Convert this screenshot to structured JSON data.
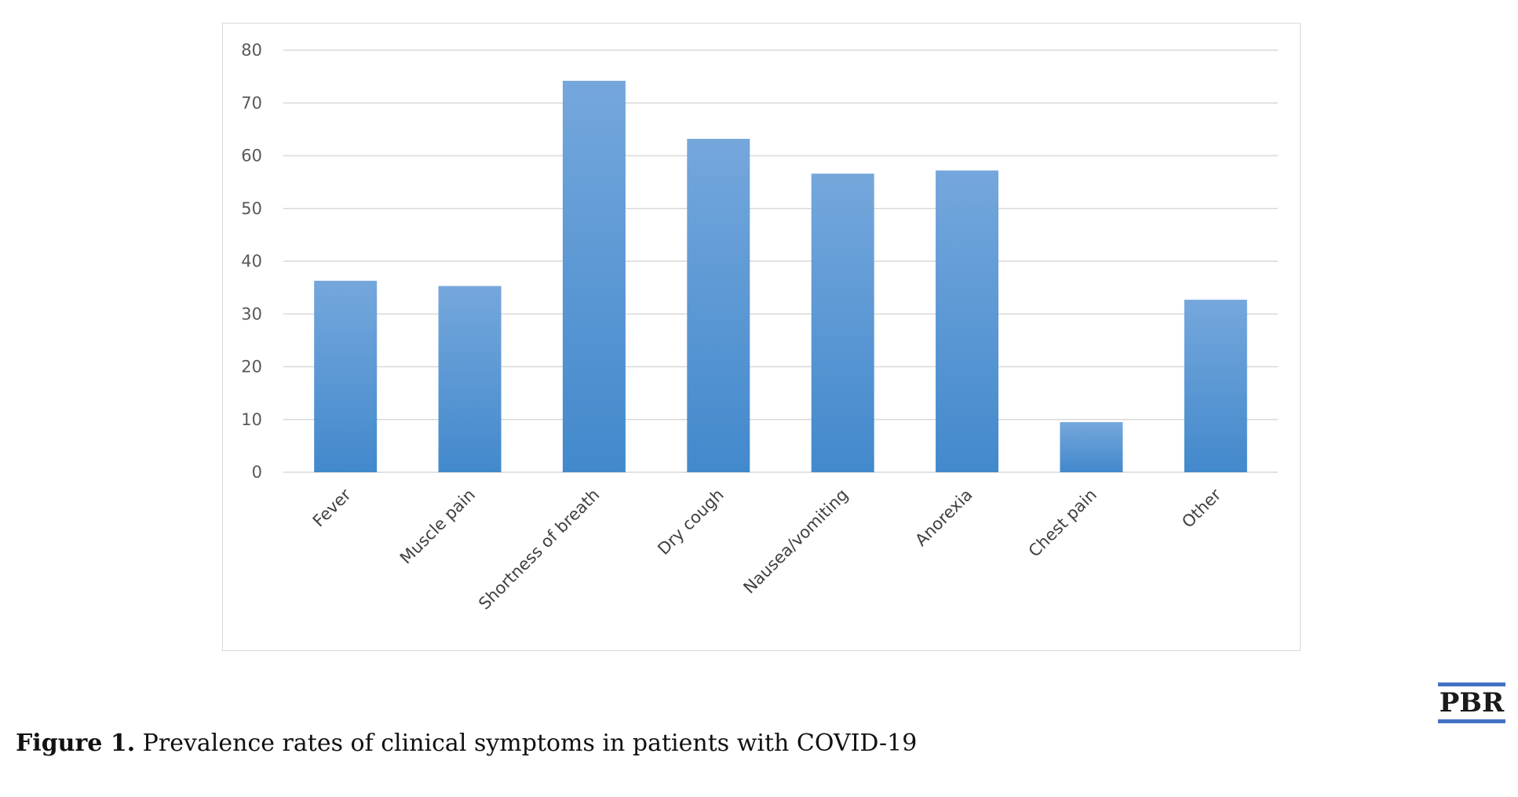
{
  "chart_data": {
    "type": "bar",
    "categories": [
      "Fever",
      "Muscle pain",
      "Shortness of breath",
      "Dry cough",
      "Nausea/vomiting",
      "Anorexia",
      "Chest pain",
      "Other"
    ],
    "values": [
      36.3,
      35.3,
      74.2,
      63.2,
      56.6,
      57.2,
      9.5,
      32.7
    ],
    "ylim": [
      0,
      80
    ],
    "yticks": [
      0,
      10,
      20,
      30,
      40,
      50,
      60,
      70,
      80
    ],
    "grid": true,
    "legend": "none",
    "colors": {
      "bar_top": "#75a7dc",
      "bar_bottom": "#4289cc",
      "grid": "#d9d9d9"
    }
  },
  "logo": {
    "text": "PBR",
    "color": "#4472c4"
  },
  "caption": {
    "label": "Figure 1.",
    "text": " Prevalence rates of clinical symptoms in patients with COVID-19"
  }
}
